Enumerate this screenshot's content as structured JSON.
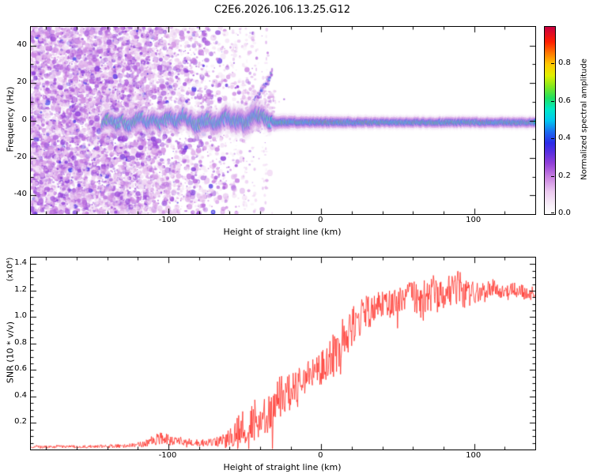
{
  "title": "C2E6.2026.106.13.25.G12",
  "colorbar": {
    "label": "Normalized spectral amplitude",
    "tick_labels": [
      "0.0",
      "0.2",
      "0.4",
      "0.6",
      "0.8"
    ],
    "tick_values": [
      0,
      0.2,
      0.4,
      0.6,
      0.8
    ],
    "range": [
      0,
      1
    ],
    "stops": [
      [
        0.0,
        "#ffffff"
      ],
      [
        0.05,
        "#f7eef8"
      ],
      [
        0.12,
        "#eccaf0"
      ],
      [
        0.2,
        "#c87fe0"
      ],
      [
        0.27,
        "#9340d8"
      ],
      [
        0.33,
        "#5a2fe0"
      ],
      [
        0.38,
        "#2b2be8"
      ],
      [
        0.44,
        "#1b6cf0"
      ],
      [
        0.5,
        "#00c8f0"
      ],
      [
        0.56,
        "#00e8c8"
      ],
      [
        0.62,
        "#20e060"
      ],
      [
        0.68,
        "#80e820"
      ],
      [
        0.74,
        "#e0f000"
      ],
      [
        0.8,
        "#ffc800"
      ],
      [
        0.86,
        "#ff7800"
      ],
      [
        0.92,
        "#ff1e00"
      ],
      [
        1.0,
        "#c80040"
      ]
    ]
  },
  "chart_data": [
    {
      "type": "heatmap",
      "title": "",
      "xlabel": "Height of straight line (km)",
      "ylabel": "Frequency (Hz)",
      "xlim": [
        -190,
        140
      ],
      "ylim": [
        -50,
        50
      ],
      "xticks": [
        -100,
        0,
        100
      ],
      "yticks": [
        -40,
        -20,
        0,
        20,
        40
      ],
      "xminor_step": 20,
      "yminor_step": 10,
      "band_start": -143,
      "band_center": [
        [
          -143,
          -1
        ],
        [
          -138,
          1
        ],
        [
          -134,
          -2
        ],
        [
          -130,
          0
        ],
        [
          -126,
          -3
        ],
        [
          -122,
          0
        ],
        [
          -118,
          2
        ],
        [
          -114,
          -1
        ],
        [
          -110,
          1
        ],
        [
          -106,
          -2
        ],
        [
          -102,
          0
        ],
        [
          -98,
          2
        ],
        [
          -94,
          -1
        ],
        [
          -90,
          3
        ],
        [
          -86,
          0
        ],
        [
          -82,
          -3
        ],
        [
          -78,
          -1
        ],
        [
          -74,
          1
        ],
        [
          -70,
          -2
        ],
        [
          -66,
          0
        ],
        [
          -62,
          2
        ],
        [
          -58,
          -1
        ],
        [
          -54,
          0
        ],
        [
          -50,
          -2
        ],
        [
          -46,
          1
        ],
        [
          -42,
          3
        ],
        [
          -38,
          2
        ],
        [
          -34,
          -1
        ],
        [
          -30,
          -1
        ],
        [
          -24,
          -1
        ],
        [
          -16,
          -1
        ],
        [
          0,
          -1
        ],
        [
          40,
          -1
        ],
        [
          80,
          -1
        ],
        [
          120,
          -1
        ],
        [
          140,
          -1
        ]
      ],
      "band_halfwidth_hz": [
        [
          -143,
          6
        ],
        [
          -120,
          6.5
        ],
        [
          -100,
          7
        ],
        [
          -80,
          7.5
        ],
        [
          -60,
          8
        ],
        [
          -48,
          9
        ],
        [
          -40,
          8
        ],
        [
          -34,
          6
        ],
        [
          -30,
          5
        ],
        [
          -10,
          4.5
        ],
        [
          40,
          4
        ],
        [
          140,
          4
        ]
      ],
      "branch": [
        [
          -49,
          3
        ],
        [
          -46,
          7
        ],
        [
          -43,
          11
        ],
        [
          -40,
          15
        ],
        [
          -37,
          19
        ],
        [
          -34,
          23
        ],
        [
          -32,
          26
        ]
      ],
      "hot_zones": [
        {
          "x0": -116,
          "x1": -84,
          "p": 0.14
        },
        {
          "x0": -6,
          "x1": 32,
          "p": 0.4
        },
        {
          "x0": 38,
          "x1": 44,
          "p": 0.2
        },
        {
          "x0": 104,
          "x1": 136,
          "p": 0.32
        }
      ],
      "hot_base_probability": 0.05,
      "noise_region": {
        "x_start": -190,
        "x_full_until": -133,
        "x_fade_to": -22,
        "value_range": [
          0.05,
          0.28
        ]
      },
      "noise_streak_x": [
        -79,
        -57,
        -50,
        -44,
        -37
      ],
      "scatter_cloud": {
        "x0": -52,
        "x1": -30,
        "f0": -6,
        "f1": 16,
        "count": 180
      },
      "description": "Dense purple speckle noise left of about -130 km fading toward -25 km; wobbly signal band near 0 Hz (cyan-green core with sporadic red spots) from -143 to -32 km; upward branch rising to about +26 Hz near -32 km; narrow flat band near -1 Hz from -32 to 140 km with red high-amplitude streaks near 0 to 30 km and 105 to 135 km."
    },
    {
      "type": "line",
      "title": "",
      "xlabel": "Height of straight line (km)",
      "ylabel": "SNR (10 * v/v)",
      "scale_label": "(x10⁴)",
      "xlim": [
        -190,
        140
      ],
      "ylim": [
        0,
        1.45
      ],
      "xticks": [
        -100,
        0,
        100
      ],
      "yticks": [
        0.2,
        0.4,
        0.6,
        0.8,
        1.0,
        1.2,
        1.4
      ],
      "xminor_step": 20,
      "yminor_step": 0.05,
      "color": "#ff3028",
      "envelope": [
        [
          -190,
          0.02,
          0.012
        ],
        [
          -150,
          0.022,
          0.012
        ],
        [
          -130,
          0.028,
          0.015
        ],
        [
          -120,
          0.035,
          0.02
        ],
        [
          -112,
          0.06,
          0.035
        ],
        [
          -105,
          0.09,
          0.05
        ],
        [
          -98,
          0.07,
          0.04
        ],
        [
          -90,
          0.06,
          0.03
        ],
        [
          -82,
          0.05,
          0.025
        ],
        [
          -74,
          0.05,
          0.03
        ],
        [
          -66,
          0.06,
          0.04
        ],
        [
          -60,
          0.09,
          0.07
        ],
        [
          -54,
          0.15,
          0.12
        ],
        [
          -49,
          0.2,
          0.16
        ],
        [
          -45,
          0.22,
          0.17
        ],
        [
          -41,
          0.2,
          0.16
        ],
        [
          -37,
          0.27,
          0.2
        ],
        [
          -33,
          0.32,
          0.2
        ],
        [
          -28,
          0.38,
          0.18
        ],
        [
          -23,
          0.42,
          0.16
        ],
        [
          -18,
          0.47,
          0.15
        ],
        [
          -13,
          0.52,
          0.14
        ],
        [
          -8,
          0.55,
          0.13
        ],
        [
          -3,
          0.59,
          0.14
        ],
        [
          2,
          0.62,
          0.15
        ],
        [
          7,
          0.69,
          0.17
        ],
        [
          12,
          0.78,
          0.18
        ],
        [
          17,
          0.88,
          0.16
        ],
        [
          22,
          0.96,
          0.14
        ],
        [
          27,
          1.01,
          0.14
        ],
        [
          32,
          1.05,
          0.13
        ],
        [
          38,
          1.09,
          0.1
        ],
        [
          45,
          1.1,
          0.12
        ],
        [
          52,
          1.14,
          0.1
        ],
        [
          60,
          1.16,
          0.12
        ],
        [
          67,
          1.12,
          0.17
        ],
        [
          73,
          1.18,
          0.14
        ],
        [
          80,
          1.16,
          0.1
        ],
        [
          86,
          1.23,
          0.13
        ],
        [
          92,
          1.2,
          0.16
        ],
        [
          98,
          1.18,
          0.09
        ],
        [
          105,
          1.2,
          0.07
        ],
        [
          112,
          1.22,
          0.07
        ],
        [
          120,
          1.18,
          0.06
        ],
        [
          128,
          1.21,
          0.06
        ],
        [
          135,
          1.17,
          0.05
        ],
        [
          140,
          1.19,
          0.05
        ]
      ],
      "description": "Noisy red SNR trace: near zero below -120 km, small bump around -105 km, steep noisy rise between -55 and +20 km, plateau around 1.2 (x10^4) above +30 km with spikes up to about 1.4."
    }
  ]
}
